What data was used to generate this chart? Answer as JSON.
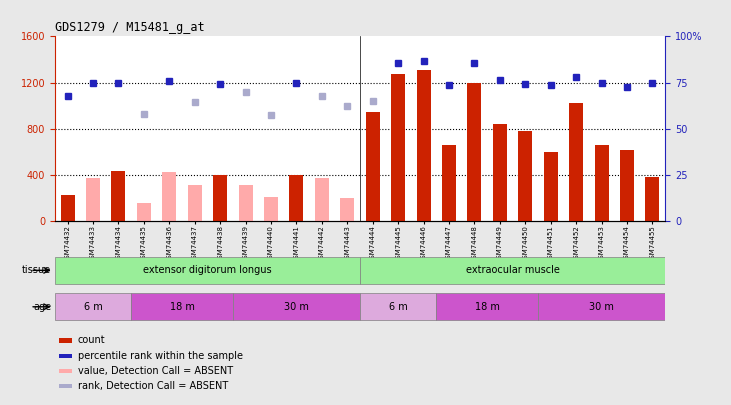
{
  "title": "GDS1279 / M15481_g_at",
  "samples": [
    "GSM74432",
    "GSM74433",
    "GSM74434",
    "GSM74435",
    "GSM74436",
    "GSM74437",
    "GSM74438",
    "GSM74439",
    "GSM74440",
    "GSM74441",
    "GSM74442",
    "GSM74443",
    "GSM74444",
    "GSM74445",
    "GSM74446",
    "GSM74447",
    "GSM74448",
    "GSM74449",
    "GSM74450",
    "GSM74451",
    "GSM74452",
    "GSM74453",
    "GSM74454",
    "GSM74455"
  ],
  "count_values": [
    220,
    null,
    430,
    null,
    null,
    null,
    400,
    null,
    null,
    400,
    null,
    null,
    940,
    1270,
    1310,
    660,
    1200,
    840,
    780,
    600,
    1020,
    660,
    610,
    380
  ],
  "count_absent": [
    null,
    370,
    null,
    155,
    420,
    310,
    null,
    310,
    210,
    null,
    370,
    200,
    null,
    null,
    null,
    null,
    null,
    null,
    null,
    null,
    null,
    null,
    null,
    null
  ],
  "rank_values": [
    1080,
    1200,
    1195,
    null,
    1215,
    null,
    1190,
    null,
    null,
    1200,
    null,
    null,
    null,
    null,
    null,
    null,
    null,
    null,
    null,
    null,
    null,
    null,
    null,
    null
  ],
  "rank_absent": [
    null,
    null,
    null,
    930,
    null,
    1030,
    null,
    1120,
    920,
    null,
    1080,
    1000,
    1040,
    null,
    null,
    null,
    null,
    null,
    null,
    null,
    null,
    null,
    null,
    null
  ],
  "percentile_rank": [
    null,
    null,
    null,
    null,
    null,
    null,
    null,
    null,
    null,
    null,
    null,
    null,
    null,
    1370,
    1390,
    1175,
    1370,
    1220,
    1190,
    1175,
    1250,
    1200,
    1165,
    1195
  ],
  "ylim_left": [
    0,
    1600
  ],
  "ylim_right": [
    0,
    100
  ],
  "color_count": "#cc2200",
  "color_count_absent": "#ffaaaa",
  "color_rank": "#2222bb",
  "color_rank_absent": "#aaaacc",
  "bg_color": "#e8e8e8",
  "plot_bg": "#ffffff",
  "tissue_groups": [
    {
      "label": "extensor digitorum longus",
      "start": 0,
      "end": 12,
      "color": "#99ee99"
    },
    {
      "label": "extraocular muscle",
      "start": 12,
      "end": 24,
      "color": "#99ee99"
    }
  ],
  "age_groups_left": [
    {
      "label": "6 m",
      "start": 0,
      "end": 3,
      "color": "#ddaadd"
    },
    {
      "label": "18 m",
      "start": 3,
      "end": 7,
      "color": "#cc55cc"
    },
    {
      "label": "30 m",
      "start": 7,
      "end": 12,
      "color": "#cc55cc"
    }
  ],
  "age_groups_right": [
    {
      "label": "6 m",
      "start": 12,
      "end": 15,
      "color": "#ddaadd"
    },
    {
      "label": "18 m",
      "start": 15,
      "end": 19,
      "color": "#cc55cc"
    },
    {
      "label": "30 m",
      "start": 19,
      "end": 24,
      "color": "#cc55cc"
    }
  ]
}
